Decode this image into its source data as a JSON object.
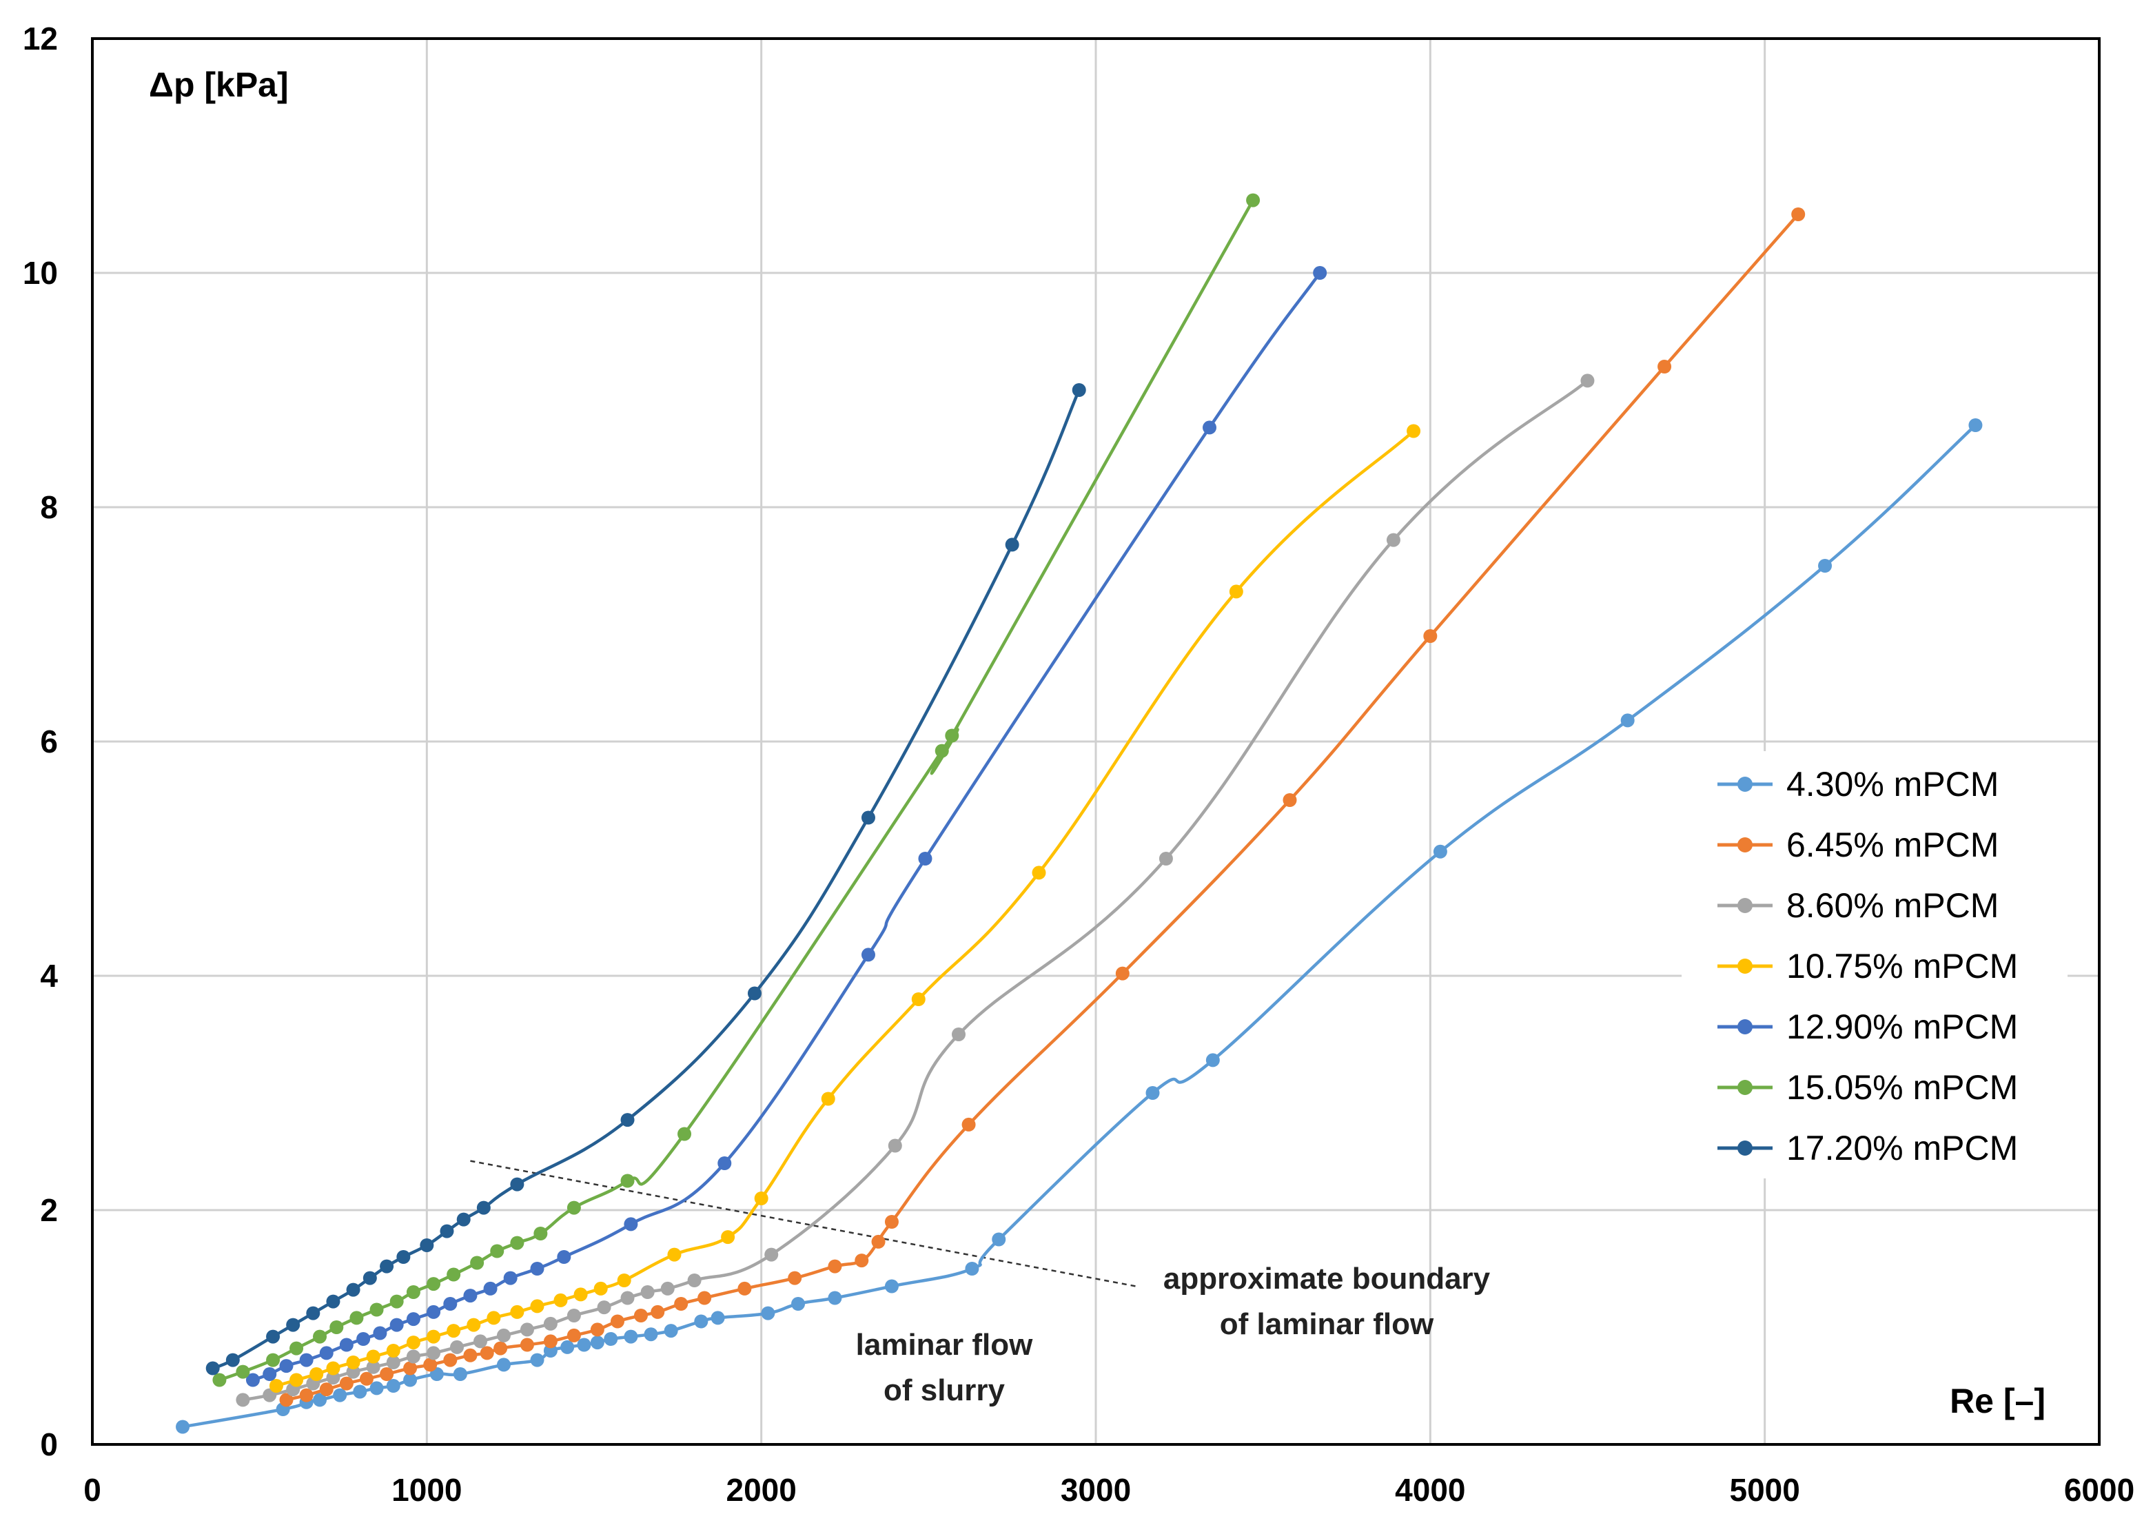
{
  "chart_data": {
    "type": "line",
    "title": "",
    "xlabel": "Re [–]",
    "ylabel": "Δp [kPa]",
    "xlim": [
      0,
      6000
    ],
    "ylim": [
      0,
      12
    ],
    "x_ticks": [
      "0",
      "1000",
      "2000",
      "3000",
      "4000",
      "5000",
      "6000"
    ],
    "y_ticks": [
      "0",
      "2",
      "4",
      "6",
      "8",
      "10",
      "12"
    ],
    "grid": true,
    "legend_position": "right",
    "series": [
      {
        "name": "4.30% mPCM",
        "color": "#5B9BD5",
        "points": [
          [
            270,
            0.15
          ],
          [
            570,
            0.3
          ],
          [
            640,
            0.36
          ],
          [
            680,
            0.38
          ],
          [
            740,
            0.42
          ],
          [
            800,
            0.45
          ],
          [
            850,
            0.48
          ],
          [
            900,
            0.5
          ],
          [
            950,
            0.55
          ],
          [
            1030,
            0.6
          ],
          [
            1100,
            0.6
          ],
          [
            1230,
            0.68
          ],
          [
            1330,
            0.72
          ],
          [
            1370,
            0.8
          ],
          [
            1420,
            0.83
          ],
          [
            1470,
            0.85
          ],
          [
            1510,
            0.87
          ],
          [
            1550,
            0.9
          ],
          [
            1610,
            0.92
          ],
          [
            1670,
            0.94
          ],
          [
            1730,
            0.97
          ],
          [
            1820,
            1.05
          ],
          [
            1870,
            1.08
          ],
          [
            2020,
            1.12
          ],
          [
            2110,
            1.2
          ],
          [
            2220,
            1.25
          ],
          [
            2390,
            1.35
          ],
          [
            2630,
            1.5
          ],
          [
            2710,
            1.75
          ],
          [
            3170,
            3.0
          ],
          [
            3350,
            3.28
          ],
          [
            4030,
            5.06
          ],
          [
            4590,
            6.18
          ],
          [
            5180,
            7.5
          ],
          [
            5630,
            8.7
          ]
        ]
      },
      {
        "name": "6.45% mPCM",
        "color": "#ED7D31",
        "points": [
          [
            580,
            0.38
          ],
          [
            640,
            0.42
          ],
          [
            700,
            0.47
          ],
          [
            760,
            0.52
          ],
          [
            820,
            0.56
          ],
          [
            880,
            0.6
          ],
          [
            950,
            0.65
          ],
          [
            1010,
            0.68
          ],
          [
            1070,
            0.72
          ],
          [
            1130,
            0.76
          ],
          [
            1180,
            0.78
          ],
          [
            1220,
            0.82
          ],
          [
            1300,
            0.85
          ],
          [
            1370,
            0.88
          ],
          [
            1440,
            0.93
          ],
          [
            1510,
            0.98
          ],
          [
            1570,
            1.05
          ],
          [
            1640,
            1.1
          ],
          [
            1690,
            1.13
          ],
          [
            1760,
            1.2
          ],
          [
            1830,
            1.25
          ],
          [
            1950,
            1.33
          ],
          [
            2100,
            1.42
          ],
          [
            2220,
            1.52
          ],
          [
            2300,
            1.57
          ],
          [
            2350,
            1.73
          ],
          [
            2390,
            1.9
          ],
          [
            2620,
            2.73
          ],
          [
            3080,
            4.02
          ],
          [
            3580,
            5.5
          ],
          [
            4000,
            6.9
          ],
          [
            4700,
            9.2
          ],
          [
            5100,
            10.5
          ]
        ]
      },
      {
        "name": "8.60% mPCM",
        "color": "#A5A5A5",
        "points": [
          [
            450,
            0.38
          ],
          [
            530,
            0.42
          ],
          [
            600,
            0.47
          ],
          [
            660,
            0.52
          ],
          [
            720,
            0.57
          ],
          [
            780,
            0.62
          ],
          [
            840,
            0.66
          ],
          [
            900,
            0.7
          ],
          [
            960,
            0.75
          ],
          [
            1020,
            0.78
          ],
          [
            1090,
            0.83
          ],
          [
            1160,
            0.88
          ],
          [
            1230,
            0.93
          ],
          [
            1300,
            0.98
          ],
          [
            1370,
            1.03
          ],
          [
            1440,
            1.1
          ],
          [
            1530,
            1.17
          ],
          [
            1600,
            1.25
          ],
          [
            1660,
            1.3
          ],
          [
            1720,
            1.33
          ],
          [
            1800,
            1.4
          ],
          [
            2030,
            1.62
          ],
          [
            2400,
            2.55
          ],
          [
            2590,
            3.5
          ],
          [
            3210,
            5.0
          ],
          [
            3890,
            7.72
          ],
          [
            4470,
            9.08
          ]
        ]
      },
      {
        "name": "10.75% mPCM",
        "color": "#FFC000",
        "points": [
          [
            550,
            0.5
          ],
          [
            610,
            0.55
          ],
          [
            670,
            0.6
          ],
          [
            720,
            0.65
          ],
          [
            780,
            0.7
          ],
          [
            840,
            0.75
          ],
          [
            900,
            0.8
          ],
          [
            960,
            0.87
          ],
          [
            1020,
            0.92
          ],
          [
            1080,
            0.97
          ],
          [
            1140,
            1.02
          ],
          [
            1200,
            1.08
          ],
          [
            1270,
            1.13
          ],
          [
            1330,
            1.18
          ],
          [
            1400,
            1.23
          ],
          [
            1460,
            1.28
          ],
          [
            1520,
            1.33
          ],
          [
            1590,
            1.4
          ],
          [
            1740,
            1.62
          ],
          [
            1900,
            1.77
          ],
          [
            2000,
            2.1
          ],
          [
            2200,
            2.95
          ],
          [
            2470,
            3.8
          ],
          [
            2830,
            4.88
          ],
          [
            3420,
            7.28
          ],
          [
            3950,
            8.65
          ]
        ]
      },
      {
        "name": "12.90% mPCM",
        "color": "#4472C4",
        "points": [
          [
            480,
            0.55
          ],
          [
            530,
            0.6
          ],
          [
            580,
            0.67
          ],
          [
            640,
            0.72
          ],
          [
            700,
            0.78
          ],
          [
            760,
            0.85
          ],
          [
            810,
            0.9
          ],
          [
            860,
            0.95
          ],
          [
            910,
            1.02
          ],
          [
            960,
            1.07
          ],
          [
            1020,
            1.13
          ],
          [
            1070,
            1.2
          ],
          [
            1130,
            1.27
          ],
          [
            1190,
            1.33
          ],
          [
            1250,
            1.42
          ],
          [
            1330,
            1.5
          ],
          [
            1410,
            1.6
          ],
          [
            1610,
            1.88
          ],
          [
            1890,
            2.4
          ],
          [
            2320,
            4.18
          ],
          [
            2490,
            5.0
          ],
          [
            3340,
            8.68
          ],
          [
            3670,
            10.0
          ]
        ]
      },
      {
        "name": "15.05% mPCM",
        "color": "#70AD47",
        "points": [
          [
            380,
            0.55
          ],
          [
            450,
            0.62
          ],
          [
            540,
            0.72
          ],
          [
            610,
            0.82
          ],
          [
            680,
            0.92
          ],
          [
            730,
            1.0
          ],
          [
            790,
            1.08
          ],
          [
            850,
            1.15
          ],
          [
            910,
            1.22
          ],
          [
            960,
            1.3
          ],
          [
            1020,
            1.37
          ],
          [
            1080,
            1.45
          ],
          [
            1150,
            1.55
          ],
          [
            1210,
            1.65
          ],
          [
            1270,
            1.72
          ],
          [
            1340,
            1.8
          ],
          [
            1440,
            2.02
          ],
          [
            1600,
            2.25
          ],
          [
            1770,
            2.65
          ],
          [
            2540,
            5.92
          ],
          [
            2570,
            6.05
          ],
          [
            3470,
            10.62
          ]
        ]
      },
      {
        "name": "17.20% mPCM",
        "color": "#255E91",
        "points": [
          [
            360,
            0.65
          ],
          [
            420,
            0.72
          ],
          [
            540,
            0.92
          ],
          [
            600,
            1.02
          ],
          [
            660,
            1.12
          ],
          [
            720,
            1.22
          ],
          [
            780,
            1.32
          ],
          [
            830,
            1.42
          ],
          [
            880,
            1.52
          ],
          [
            930,
            1.6
          ],
          [
            1000,
            1.7
          ],
          [
            1060,
            1.82
          ],
          [
            1110,
            1.92
          ],
          [
            1170,
            2.02
          ],
          [
            1270,
            2.22
          ],
          [
            1600,
            2.77
          ],
          [
            1980,
            3.85
          ],
          [
            2320,
            5.35
          ],
          [
            2750,
            7.68
          ],
          [
            2950,
            9.0
          ]
        ]
      }
    ],
    "annotations": {
      "boundary_line": [
        [
          1130,
          2.42
        ],
        [
          3120,
          1.35
        ]
      ],
      "boundary_label": [
        "approximate boundary",
        "of laminar flow"
      ],
      "laminar_label": [
        "laminar flow",
        "of slurry"
      ]
    }
  }
}
